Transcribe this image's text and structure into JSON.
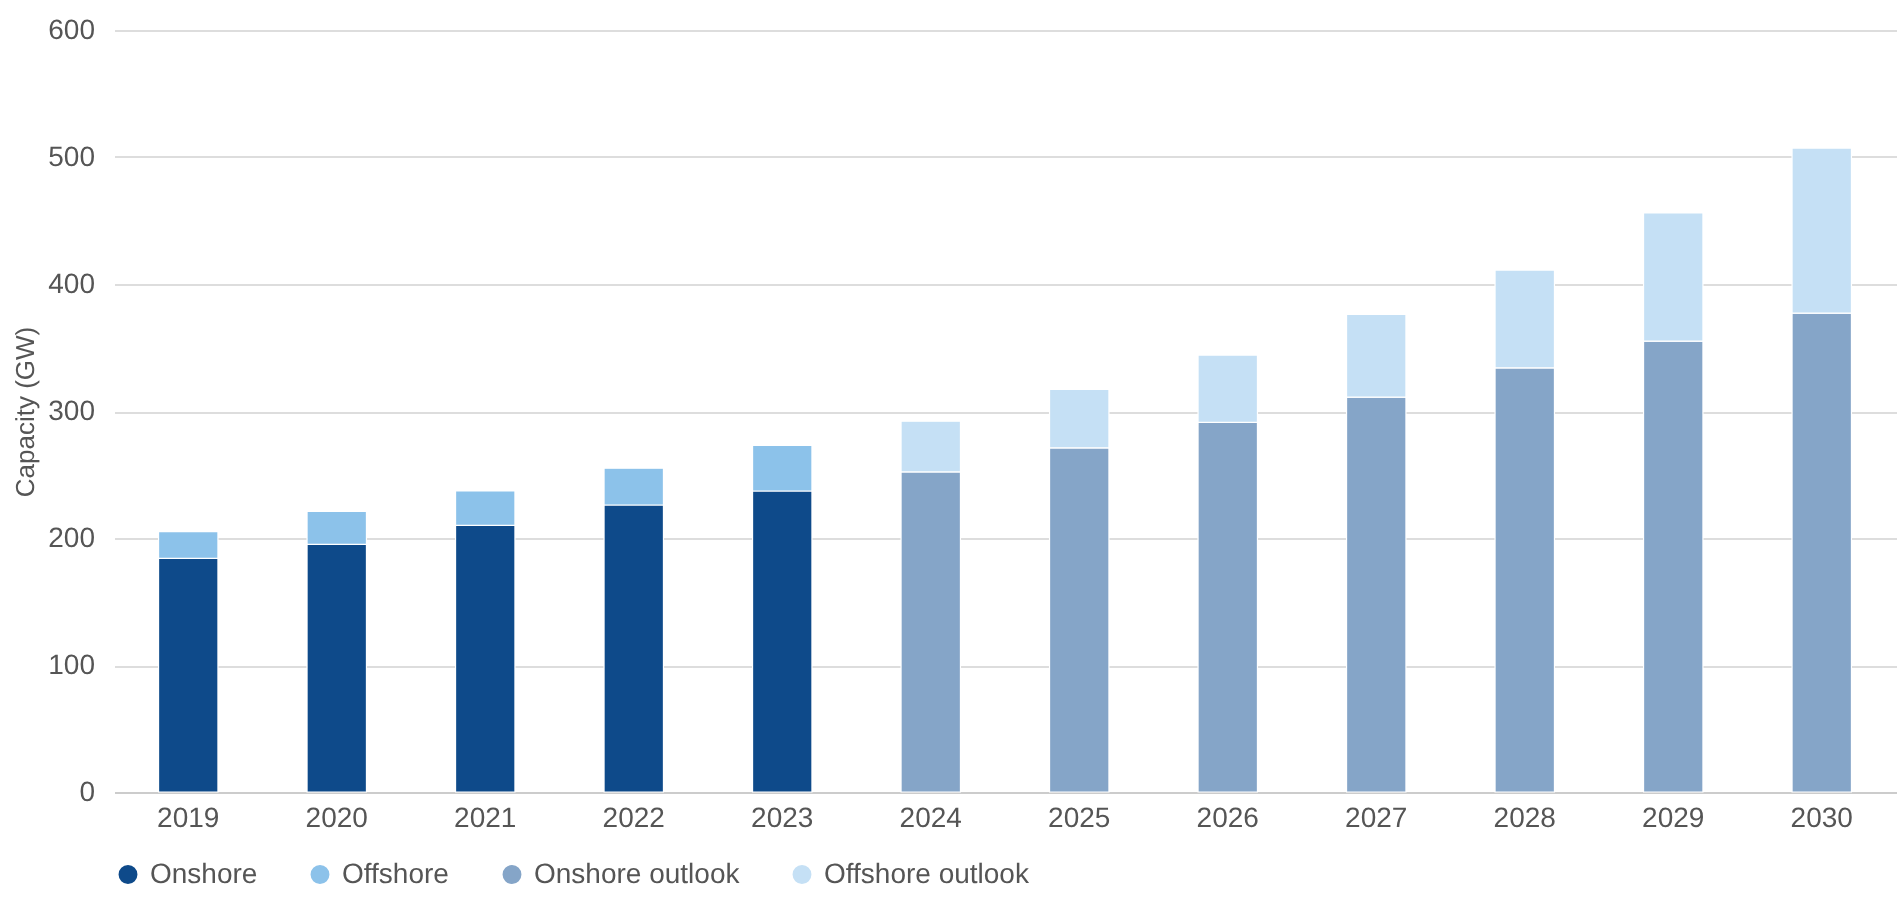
{
  "chart_data": {
    "type": "bar",
    "stacked": true,
    "ylabel": "Capacity (GW)",
    "categories": [
      "2019",
      "2020",
      "2021",
      "2022",
      "2023",
      "2024",
      "2025",
      "2026",
      "2027",
      "2028",
      "2029",
      "2030"
    ],
    "series": [
      {
        "name": "Onshore",
        "color": "#0e4a8a",
        "values": [
          184,
          195,
          210,
          226,
          237,
          null,
          null,
          null,
          null,
          null,
          null,
          null
        ]
      },
      {
        "name": "Offshore",
        "color": "#8cc2ea",
        "values": [
          21,
          26,
          27,
          29,
          36,
          null,
          null,
          null,
          null,
          null,
          null,
          null
        ]
      },
      {
        "name": "Onshore outlook",
        "color": "#85a5c8",
        "values": [
          null,
          null,
          null,
          null,
          null,
          252,
          271,
          291,
          311,
          334,
          355,
          377
        ]
      },
      {
        "name": "Offshore outlook",
        "color": "#c5e0f5",
        "values": [
          null,
          null,
          null,
          null,
          null,
          40,
          46,
          53,
          65,
          77,
          101,
          130
        ]
      }
    ],
    "ylim": [
      0,
      600
    ],
    "yticks": [
      0,
      100,
      200,
      300,
      400,
      500,
      600
    ],
    "grid": "y",
    "legend": "bottom"
  }
}
